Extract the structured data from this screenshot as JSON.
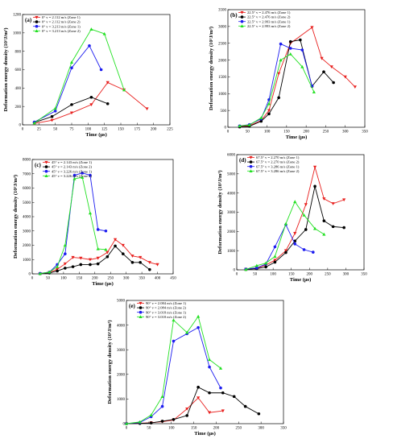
{
  "chart_data": [
    {
      "id": "a",
      "panel_label": "(a)",
      "type": "line",
      "xlabel": "Time (μs)",
      "ylabel": "Deformation energy density (10³J/m³)",
      "xlim": [
        0,
        225
      ],
      "ylim": [
        0,
        1200
      ],
      "xticks": [
        0,
        25,
        50,
        75,
        100,
        125,
        150,
        175,
        200,
        225
      ],
      "yticks": [
        0,
        200,
        400,
        600,
        800,
        1000,
        1200
      ],
      "legend_position": "top-left",
      "series": [
        {
          "name": "0° v = 2.112 m/s  (Zone 1)",
          "color": "#e8201e",
          "marker": "triangle-down",
          "x": [
            18,
            45,
            75,
            105,
            130,
            155,
            190
          ],
          "y": [
            15,
            50,
            130,
            220,
            460,
            380,
            175
          ]
        },
        {
          "name": "0° v = 2.112 m/s  (Zone 2)",
          "color": "#000000",
          "marker": "circle",
          "x": [
            18,
            45,
            75,
            105,
            130
          ],
          "y": [
            25,
            90,
            220,
            300,
            230
          ]
        },
        {
          "name": "0° v = 3.213 m/s  (Zone 1)",
          "color": "#1c1cf0",
          "marker": "circle",
          "x": [
            18,
            50,
            75,
            102,
            120
          ],
          "y": [
            30,
            150,
            620,
            860,
            600
          ]
        },
        {
          "name": "0° v = 3.213 m/s  (Zone 2)",
          "color": "#22e022",
          "marker": "triangle-up",
          "x": [
            18,
            50,
            75,
            105,
            125,
            155
          ],
          "y": [
            20,
            180,
            680,
            1040,
            990,
            380
          ]
        }
      ]
    },
    {
      "id": "b",
      "panel_label": "(b)",
      "type": "line",
      "xlabel": "Time (μs)",
      "ylabel": "Deformation energy density (10³J/m³)",
      "xlim": [
        0,
        350
      ],
      "ylim": [
        0,
        3500
      ],
      "xticks": [
        0,
        50,
        100,
        150,
        200,
        250,
        300,
        350
      ],
      "yticks": [
        0,
        500,
        1000,
        1500,
        2000,
        2500,
        3000,
        3500
      ],
      "legend_position": "top-left",
      "series": [
        {
          "name": "22.5° v = 2.476 m/s  (Zone 1)",
          "color": "#e8201e",
          "marker": "triangle-down",
          "x": [
            30,
            55,
            85,
            105,
            130,
            160,
            215,
            240,
            265,
            300,
            325
          ],
          "y": [
            20,
            50,
            200,
            500,
            1600,
            2500,
            2970,
            2050,
            1800,
            1500,
            1200
          ]
        },
        {
          "name": "22.5° v = 2.476 m/s  (Zone 2)",
          "color": "#000000",
          "marker": "circle",
          "x": [
            30,
            55,
            85,
            105,
            130,
            160,
            185,
            215,
            245,
            270
          ],
          "y": [
            10,
            30,
            180,
            400,
            880,
            2550,
            2600,
            1220,
            1650,
            1330
          ]
        },
        {
          "name": "22.5° v = 2.993 m/s  (Zone 1)",
          "color": "#1c1cf0",
          "marker": "circle",
          "x": [
            30,
            55,
            85,
            105,
            135,
            160,
            190,
            215
          ],
          "y": [
            40,
            80,
            250,
            820,
            2480,
            2350,
            2300,
            1230
          ]
        },
        {
          "name": "22.5° v = 2.993 m/s  (Zone 2)",
          "color": "#22e022",
          "marker": "triangle-up",
          "x": [
            30,
            55,
            85,
            105,
            135,
            160,
            190,
            220
          ],
          "y": [
            40,
            70,
            280,
            700,
            2000,
            2180,
            1800,
            1050
          ]
        }
      ]
    },
    {
      "id": "c",
      "panel_label": "(c)",
      "type": "line",
      "xlabel": "Time (μs)",
      "ylabel": "Deformation energy density (10³J/m³)",
      "xlim": [
        0,
        450
      ],
      "ylim": [
        0,
        8000
      ],
      "xticks": [
        0,
        50,
        100,
        150,
        200,
        250,
        300,
        350,
        400,
        450
      ],
      "yticks": [
        0,
        1000,
        2000,
        3000,
        4000,
        5000,
        6000,
        7000,
        8000
      ],
      "legend_position": "top-left",
      "series": [
        {
          "name": "45° v = 2.143 m/s  (Zone 1)",
          "color": "#e8201e",
          "marker": "triangle-down",
          "x": [
            25,
            55,
            80,
            105,
            130,
            155,
            185,
            210,
            240,
            265,
            290,
            320,
            345,
            375,
            400
          ],
          "y": [
            20,
            100,
            320,
            700,
            1150,
            1100,
            1000,
            1100,
            1500,
            2400,
            2000,
            1250,
            1150,
            800,
            650
          ]
        },
        {
          "name": "45° v = 2.143 m/s  (Zone 2)",
          "color": "#000000",
          "marker": "circle",
          "x": [
            25,
            55,
            80,
            105,
            130,
            155,
            185,
            210,
            240,
            265,
            290,
            320,
            345,
            375
          ],
          "y": [
            10,
            60,
            200,
            400,
            500,
            650,
            650,
            700,
            1200,
            1950,
            1400,
            800,
            800,
            300
          ]
        },
        {
          "name": "45° v = 3.226 m/s  (Zone 1)",
          "color": "#1c1cf0",
          "marker": "circle",
          "x": [
            25,
            55,
            80,
            105,
            135,
            160,
            185,
            210,
            235
          ],
          "y": [
            30,
            120,
            650,
            1400,
            6900,
            7050,
            6900,
            3100,
            3000
          ]
        },
        {
          "name": "45° v = 3.226 m/s  (Zone 2)",
          "color": "#22e022",
          "marker": "triangle-up",
          "x": [
            25,
            55,
            80,
            105,
            135,
            160,
            185,
            210,
            235
          ],
          "y": [
            20,
            130,
            500,
            2000,
            6650,
            6750,
            4250,
            1750,
            1700
          ]
        }
      ]
    },
    {
      "id": "d",
      "panel_label": "(d)",
      "type": "line",
      "xlabel": "Time (μs)",
      "ylabel": "Deformation energy density (10³J/m³)",
      "xlim": [
        0,
        350
      ],
      "ylim": [
        0,
        6000
      ],
      "xticks": [
        0,
        50,
        100,
        150,
        200,
        250,
        300,
        350
      ],
      "yticks": [
        0,
        1000,
        2000,
        3000,
        4000,
        5000,
        6000
      ],
      "legend_position": "top-left",
      "series": [
        {
          "name": "67.5° v = 2.270 m/s  (Zone 1)",
          "color": "#e8201e",
          "marker": "triangle-down",
          "x": [
            25,
            55,
            80,
            105,
            135,
            160,
            190,
            215,
            240,
            265,
            295
          ],
          "y": [
            30,
            80,
            250,
            500,
            1000,
            1900,
            3400,
            5350,
            3700,
            3450,
            3650
          ]
        },
        {
          "name": "67.5° v = 2.270 m/s  (Zone 2)",
          "color": "#000000",
          "marker": "circle",
          "x": [
            25,
            55,
            80,
            105,
            135,
            160,
            190,
            215,
            240,
            265,
            295
          ],
          "y": [
            20,
            60,
            150,
            400,
            900,
            1500,
            2100,
            4350,
            2550,
            2250,
            2200
          ]
        },
        {
          "name": "67.5° v = 3.286 m/s  (Zone 1)",
          "color": "#1c1cf0",
          "marker": "circle",
          "x": [
            25,
            55,
            80,
            105,
            135,
            160,
            185,
            210
          ],
          "y": [
            40,
            100,
            300,
            1200,
            2350,
            1350,
            1050,
            920
          ]
        },
        {
          "name": "67.5° v = 3.286 m/s  (Zone 2)",
          "color": "#22e022",
          "marker": "triangle-up",
          "x": [
            25,
            55,
            80,
            105,
            135,
            160,
            185,
            215,
            240
          ],
          "y": [
            20,
            220,
            350,
            700,
            2400,
            3550,
            2850,
            2150,
            1850
          ]
        }
      ]
    },
    {
      "id": "e",
      "panel_label": "(e)",
      "type": "line",
      "xlabel": "Time (μs)",
      "ylabel": "Deformation energy density (10³J/m³)",
      "xlim": [
        0,
        350
      ],
      "ylim": [
        0,
        5000
      ],
      "xticks": [
        0,
        50,
        100,
        150,
        200,
        250,
        300,
        350
      ],
      "yticks": [
        0,
        1000,
        2000,
        3000,
        4000,
        5000
      ],
      "legend_position": "top-left",
      "series": [
        {
          "name": "90° v = 2.084 m/s  (Zone 1)",
          "color": "#e8201e",
          "marker": "triangle-down",
          "x": [
            0,
            30,
            55,
            80,
            105,
            135,
            160,
            185,
            215
          ],
          "y": [
            0,
            20,
            40,
            80,
            150,
            600,
            1050,
            450,
            520
          ]
        },
        {
          "name": "90° v = 2.084 m/s  (Zone 2)",
          "color": "#000000",
          "marker": "circle",
          "x": [
            0,
            30,
            55,
            80,
            105,
            135,
            160,
            185,
            215,
            240,
            265,
            295
          ],
          "y": [
            0,
            10,
            30,
            100,
            170,
            330,
            1480,
            1250,
            1250,
            1100,
            700,
            400
          ]
        },
        {
          "name": "90° v = 3.018 m/s  (Zone 1)",
          "color": "#1c1cf0",
          "marker": "circle",
          "x": [
            0,
            30,
            55,
            80,
            105,
            135,
            160,
            185,
            210
          ],
          "y": [
            0,
            50,
            280,
            700,
            3350,
            3650,
            3900,
            2300,
            1450
          ]
        },
        {
          "name": "90° v = 3.018 m/s  (Zone 2)",
          "color": "#22e022",
          "marker": "triangle-up",
          "x": [
            0,
            30,
            55,
            80,
            105,
            135,
            160,
            185,
            210
          ],
          "y": [
            0,
            70,
            350,
            1100,
            4200,
            3700,
            4350,
            2600,
            2250
          ]
        }
      ]
    }
  ]
}
